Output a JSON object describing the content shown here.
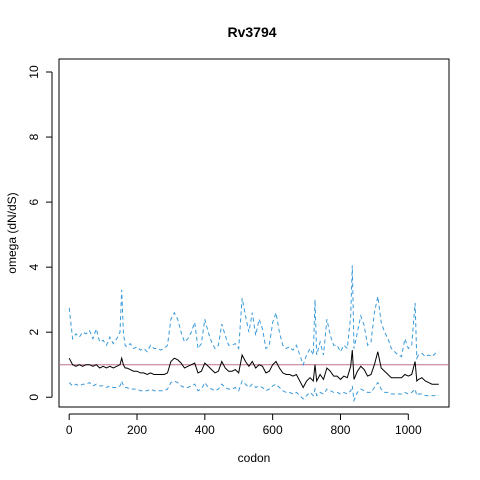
{
  "chart_data": {
    "type": "line",
    "title": "Rv3794",
    "xlabel": "codon",
    "ylabel": "omega (dN/dS)",
    "xlim": [
      -30,
      1120
    ],
    "ylim": [
      -0.3,
      10.4
    ],
    "x_ticks": [
      0,
      200,
      400,
      600,
      800,
      1000
    ],
    "y_ticks": [
      0,
      2,
      4,
      6,
      8,
      10
    ],
    "grid": false,
    "reference_line": {
      "y": 1.0,
      "color": "#c0708a"
    },
    "colors": {
      "mean": "#000000",
      "bounds": "#3a9ad9"
    },
    "series": [
      {
        "role": "upper",
        "style": "dashed",
        "x": [
          0,
          10,
          20,
          30,
          40,
          50,
          60,
          70,
          80,
          90,
          100,
          110,
          120,
          130,
          140,
          150,
          155,
          160,
          165,
          170,
          180,
          190,
          200,
          210,
          220,
          230,
          240,
          250,
          260,
          270,
          280,
          290,
          300,
          310,
          320,
          330,
          340,
          350,
          360,
          370,
          380,
          390,
          400,
          410,
          420,
          430,
          440,
          450,
          460,
          470,
          480,
          490,
          500,
          510,
          520,
          530,
          540,
          550,
          560,
          570,
          580,
          590,
          600,
          610,
          620,
          630,
          640,
          650,
          660,
          670,
          680,
          690,
          700,
          710,
          720,
          725,
          730,
          740,
          750,
          760,
          770,
          780,
          790,
          800,
          810,
          820,
          830,
          835,
          840,
          850,
          860,
          870,
          880,
          890,
          900,
          910,
          920,
          930,
          940,
          950,
          960,
          970,
          980,
          990,
          1000,
          1010,
          1020,
          1025,
          1030,
          1040,
          1050,
          1060,
          1070,
          1080,
          1090
        ],
        "y": [
          2.75,
          1.8,
          1.95,
          1.85,
          2.0,
          1.95,
          2.05,
          1.8,
          2.1,
          1.7,
          1.75,
          1.6,
          1.85,
          1.65,
          1.8,
          2.0,
          3.3,
          2.0,
          1.6,
          1.55,
          1.65,
          1.5,
          1.55,
          1.45,
          1.5,
          1.4,
          1.6,
          1.5,
          1.5,
          1.45,
          1.5,
          1.6,
          2.4,
          2.6,
          2.4,
          2.0,
          1.7,
          1.8,
          2.0,
          2.3,
          1.5,
          1.65,
          2.4,
          2.0,
          1.7,
          1.5,
          1.6,
          2.25,
          1.9,
          1.6,
          1.6,
          1.65,
          1.5,
          3.05,
          2.5,
          2.0,
          2.6,
          1.9,
          2.4,
          2.1,
          1.5,
          1.6,
          2.3,
          2.6,
          2.0,
          1.6,
          1.5,
          1.55,
          1.45,
          1.6,
          1.3,
          1.0,
          1.3,
          1.5,
          1.3,
          3.0,
          1.3,
          1.7,
          1.3,
          2.4,
          1.9,
          1.6,
          1.6,
          1.4,
          1.6,
          1.5,
          2.5,
          4.05,
          1.5,
          2.0,
          2.5,
          2.2,
          1.6,
          1.7,
          2.6,
          3.1,
          2.3,
          2.0,
          1.8,
          1.5,
          1.4,
          1.3,
          1.25,
          1.8,
          1.5,
          1.6,
          2.9,
          1.2,
          1.3,
          1.35,
          1.25,
          1.3,
          1.25,
          1.35,
          1.4
        ]
      },
      {
        "role": "mean",
        "style": "solid",
        "x": [
          0,
          10,
          20,
          30,
          40,
          50,
          60,
          70,
          80,
          90,
          100,
          110,
          120,
          130,
          140,
          150,
          155,
          160,
          165,
          170,
          180,
          190,
          200,
          210,
          220,
          230,
          240,
          250,
          260,
          270,
          280,
          290,
          300,
          310,
          320,
          330,
          340,
          350,
          360,
          370,
          380,
          390,
          400,
          410,
          420,
          430,
          440,
          450,
          460,
          470,
          480,
          490,
          500,
          510,
          520,
          530,
          540,
          550,
          560,
          570,
          580,
          590,
          600,
          610,
          620,
          630,
          640,
          650,
          660,
          670,
          680,
          690,
          700,
          710,
          720,
          725,
          730,
          740,
          750,
          760,
          770,
          780,
          790,
          800,
          810,
          820,
          830,
          835,
          840,
          850,
          860,
          870,
          880,
          890,
          900,
          910,
          920,
          930,
          940,
          950,
          960,
          970,
          980,
          990,
          1000,
          1010,
          1020,
          1025,
          1030,
          1040,
          1050,
          1060,
          1070,
          1080,
          1090
        ],
        "y": [
          1.2,
          1.0,
          0.95,
          1.0,
          0.95,
          1.0,
          1.0,
          0.95,
          1.0,
          0.9,
          0.95,
          0.9,
          0.95,
          0.9,
          0.95,
          1.0,
          1.2,
          1.0,
          0.9,
          0.9,
          0.85,
          0.8,
          0.8,
          0.75,
          0.75,
          0.7,
          0.75,
          0.7,
          0.7,
          0.7,
          0.7,
          0.75,
          1.1,
          1.2,
          1.15,
          1.05,
          0.9,
          0.95,
          1.0,
          1.05,
          0.75,
          0.8,
          1.05,
          0.95,
          0.85,
          0.75,
          0.8,
          1.1,
          0.9,
          0.8,
          0.8,
          0.85,
          0.75,
          1.3,
          1.1,
          0.95,
          1.1,
          0.9,
          1.0,
          0.95,
          0.75,
          0.8,
          1.0,
          1.1,
          0.9,
          0.75,
          0.7,
          0.7,
          0.65,
          0.7,
          0.5,
          0.3,
          0.5,
          0.6,
          0.5,
          1.0,
          0.5,
          0.7,
          0.55,
          0.9,
          0.8,
          0.65,
          0.65,
          0.55,
          0.65,
          0.6,
          0.95,
          1.45,
          0.55,
          0.8,
          0.95,
          0.85,
          0.65,
          0.7,
          1.0,
          1.4,
          0.9,
          0.8,
          0.7,
          0.6,
          0.6,
          0.6,
          0.6,
          0.7,
          0.65,
          0.7,
          1.1,
          0.5,
          0.55,
          0.6,
          0.5,
          0.45,
          0.4,
          0.4,
          0.4
        ]
      },
      {
        "role": "lower",
        "style": "dashed",
        "x": [
          0,
          10,
          20,
          30,
          40,
          50,
          60,
          70,
          80,
          90,
          100,
          110,
          120,
          130,
          140,
          150,
          155,
          160,
          165,
          170,
          180,
          190,
          200,
          210,
          220,
          230,
          240,
          250,
          260,
          270,
          280,
          290,
          300,
          310,
          320,
          330,
          340,
          350,
          360,
          370,
          380,
          390,
          400,
          410,
          420,
          430,
          440,
          450,
          460,
          470,
          480,
          490,
          500,
          510,
          520,
          530,
          540,
          550,
          560,
          570,
          580,
          590,
          600,
          610,
          620,
          630,
          640,
          650,
          660,
          670,
          680,
          690,
          700,
          710,
          720,
          725,
          730,
          740,
          750,
          760,
          770,
          780,
          790,
          800,
          810,
          820,
          830,
          835,
          840,
          850,
          860,
          870,
          880,
          890,
          900,
          910,
          920,
          930,
          940,
          950,
          960,
          970,
          980,
          990,
          1000,
          1010,
          1020,
          1025,
          1030,
          1040,
          1050,
          1060,
          1070,
          1080,
          1090
        ],
        "y": [
          0.45,
          0.35,
          0.4,
          0.35,
          0.4,
          0.4,
          0.45,
          0.35,
          0.4,
          0.35,
          0.35,
          0.3,
          0.35,
          0.3,
          0.3,
          0.35,
          0.5,
          0.35,
          0.3,
          0.3,
          0.25,
          0.25,
          0.25,
          0.2,
          0.2,
          0.2,
          0.25,
          0.2,
          0.2,
          0.2,
          0.2,
          0.25,
          0.45,
          0.5,
          0.45,
          0.35,
          0.3,
          0.3,
          0.35,
          0.4,
          0.2,
          0.25,
          0.45,
          0.3,
          0.25,
          0.2,
          0.25,
          0.4,
          0.3,
          0.25,
          0.25,
          0.3,
          0.2,
          0.5,
          0.4,
          0.3,
          0.4,
          0.3,
          0.35,
          0.3,
          0.2,
          0.25,
          0.35,
          0.4,
          0.3,
          0.2,
          0.15,
          0.15,
          0.1,
          0.15,
          0.05,
          -0.05,
          0.05,
          0.15,
          0.05,
          0.25,
          0.05,
          0.15,
          0.1,
          0.25,
          0.2,
          0.15,
          0.15,
          0.1,
          0.15,
          0.1,
          0.2,
          0.35,
          -0.1,
          0.15,
          0.25,
          0.2,
          0.15,
          0.15,
          0.3,
          0.45,
          0.25,
          0.15,
          0.15,
          0.1,
          0.1,
          0.1,
          0.1,
          0.15,
          0.1,
          0.15,
          0.25,
          0.05,
          0.1,
          0.1,
          0.05,
          0.05,
          0.05,
          0.05,
          0.05
        ]
      }
    ]
  }
}
